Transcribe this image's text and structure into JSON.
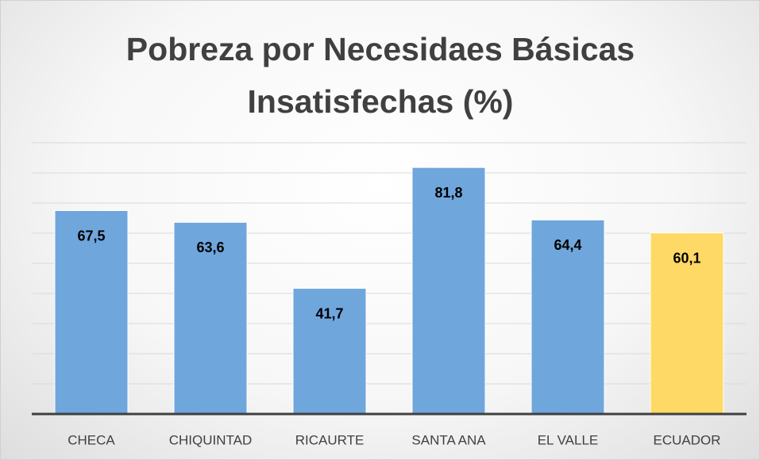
{
  "chart_data": {
    "type": "bar",
    "title": "Pobreza por Necesidaes Básicas Insatisfechas (%)",
    "categories": [
      "CHECA",
      "CHIQUINTAD",
      "RICAURTE",
      "SANTA ANA",
      "EL VALLE",
      "ECUADOR"
    ],
    "values": [
      67.5,
      63.6,
      41.7,
      81.8,
      64.4,
      60.1
    ],
    "value_labels": [
      "67,5",
      "63,6",
      "41,7",
      "81,8",
      "64,4",
      "60,1"
    ],
    "colors": [
      "#6fa6dc",
      "#6fa6dc",
      "#6fa6dc",
      "#6fa6dc",
      "#6fa6dc",
      "#ffd966"
    ],
    "ylim": [
      0,
      90
    ],
    "yticks": [
      0,
      10,
      20,
      30,
      40,
      50,
      60,
      70,
      80,
      90
    ],
    "grid": true
  }
}
